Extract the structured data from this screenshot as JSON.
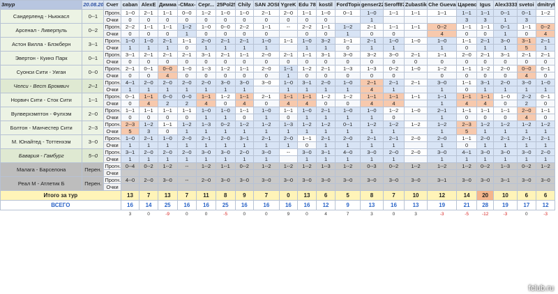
{
  "header": {
    "tour_label": "3тур",
    "date": "20.08.2011",
    "score_label": "Счет",
    "players": [
      "caban",
      "AlexE",
      "Димма",
      "-CMax-",
      "Серг...",
      "25Pol25",
      "Chily",
      "SAN JOSE",
      "YgreK",
      "Edu 78",
      "kostil",
      "FordTopich",
      "genser221",
      "Seroff87",
      "Zubastik",
      "Che Guevara",
      "Царевский",
      "Igus",
      "Alex3333",
      "svetoi",
      "dmitryK"
    ]
  },
  "matches": [
    {
      "name": "Сандерленд - Ньюкасл",
      "score": "0--1",
      "style": "normal",
      "pred": [
        "1--0",
        "2--1",
        "1--1",
        "0--0",
        "1--2",
        "1--0",
        "1--0",
        "2--1",
        "2--0",
        "1--1",
        "1--0",
        "0--1",
        "1--0",
        "1--1",
        "1--1",
        "1--1",
        "1--1",
        "1--1",
        "0--1",
        "0--1",
        "1--2"
      ],
      "pts": [
        "0",
        "0",
        "0",
        "0",
        "0",
        "0",
        "0",
        "0",
        "0",
        "0",
        "0",
        "",
        "1",
        "",
        "",
        "",
        "3",
        "3",
        "1",
        "3",
        ""
      ]
    },
    {
      "name": "Арсенал - Ливерпуль",
      "score": "0--2",
      "style": "normal",
      "pred": [
        "2--2",
        "1--1",
        "1--1",
        "1--2",
        "1--0",
        "0--0",
        "2--2",
        "1--1",
        "--",
        "2--2",
        "1--1",
        "1--2",
        "2--1",
        "1--1",
        "1--1",
        "0--2",
        "1--1",
        "1--1",
        "0--1",
        "1--1",
        "0--2"
      ],
      "pts": [
        "0",
        "0",
        "0",
        "1",
        "0",
        "0",
        "0",
        "0",
        "",
        "0",
        "0",
        "1",
        "0",
        "0",
        "",
        "4",
        "0",
        "0",
        "1",
        "0",
        "4"
      ]
    },
    {
      "name": "Астон Вилла - Блэкберн",
      "score": "3--1",
      "style": "normal",
      "pred": [
        "1--0",
        "1--0",
        "2--1",
        "1--1",
        "2--0",
        "2--1",
        "2--1",
        "1--0",
        "1--1",
        "1--0",
        "3--2",
        "1--1",
        "2--1",
        "1--0",
        "1--0",
        "1--0",
        "1--1",
        "2--1",
        "3--0",
        "3--1",
        "2--1"
      ],
      "pts": [
        "1",
        "1",
        "1",
        "0",
        "1",
        "1",
        "1",
        "1",
        "",
        "1",
        "1",
        "0",
        "1",
        "1",
        "",
        "1",
        "0",
        "1",
        "1",
        "5",
        "1"
      ]
    },
    {
      "name": "Эвертон - Куинз Парк",
      "score": "0--1",
      "style": "normal",
      "pred": [
        "3--1",
        "2--1",
        "2--1",
        "2--1",
        "3--1",
        "2--1",
        "1--1",
        "2--0",
        "2--1",
        "1--1",
        "3--1",
        "3--0",
        "3--2",
        "3--0",
        "2--1",
        "1--1",
        "2--0",
        "2--1",
        "3--1",
        "2--1",
        "2--1"
      ],
      "pts": [
        "0",
        "0",
        "0",
        "0",
        "0",
        "0",
        "0",
        "0",
        "0",
        "0",
        "0",
        "0",
        "0",
        "0",
        "0",
        "0",
        "0",
        "0",
        "0",
        "0",
        "0"
      ]
    },
    {
      "name": "Суонси Сити - Уиган",
      "score": "0--0",
      "style": "normal",
      "pred": [
        "2--1",
        "0--1",
        "0--0",
        "1--0",
        "1--3",
        "1--2",
        "1--1",
        "2--0",
        "1--1",
        "1--2",
        "2--1",
        "1--3",
        "1--3",
        "0--2",
        "1--0",
        "1--2",
        "1--1",
        "1--2",
        "2--0",
        "0--0",
        "0--1"
      ],
      "pts": [
        "0",
        "0",
        "4",
        "0",
        "0",
        "0",
        "0",
        "0",
        "1",
        "0",
        "0",
        "0",
        "0",
        "0",
        "",
        "0",
        "0",
        "0",
        "0",
        "4",
        "0"
      ]
    },
    {
      "name": "Челси - Вест Бромвич",
      "score": "2--1",
      "style": "shade-italic",
      "pred": [
        "4--1",
        "2--0",
        "2--0",
        "2--0",
        "2--0",
        "3--0",
        "3--0",
        "3--0",
        "1--0",
        "3--1",
        "2--0",
        "1--0",
        "2--1",
        "2--1",
        "2--1",
        "3--0",
        "1--1",
        "3--1",
        "2--0",
        "3--0",
        "1--0"
      ],
      "pts": [
        "1",
        "1",
        "1",
        "1",
        "1",
        "1",
        "1",
        "",
        "1",
        "1",
        "1",
        "1",
        "4",
        "1",
        "",
        "1",
        "0",
        "1",
        "1",
        "1",
        "1"
      ]
    },
    {
      "name": "Норвич Сити - Сток Сити",
      "score": "1--1",
      "style": "normal",
      "pred": [
        "0--1",
        "1--1",
        "0--0",
        "0--0",
        "1--1",
        "1--2",
        "1--1",
        "2--1",
        "1--1",
        "1--1",
        "1--2",
        "1--2",
        "1--1",
        "1--1",
        "1--1",
        "1--1",
        "1--1",
        "1--1",
        "1--0",
        "2--2",
        "0--1"
      ],
      "pts": [
        "0",
        "4",
        "2",
        "2",
        "4",
        "0",
        "4",
        "0",
        "4",
        "4",
        "0",
        "0",
        "4",
        "4",
        "",
        "1",
        "4",
        "4",
        "0",
        "2",
        "0"
      ]
    },
    {
      "name": "Вулверхэмптон - Фулхэм",
      "score": "2--0",
      "style": "normal",
      "pred": [
        "1--1",
        "1--1",
        "1--1",
        "1--1",
        "1--0",
        "1--0",
        "1--1",
        "1--0",
        "1--1",
        "1--0",
        "2--1",
        "1--0",
        "1--0",
        "1--2",
        "1--0",
        "2--1",
        "1--1",
        "1--1",
        "1--1",
        "2--0",
        "1--1"
      ],
      "pts": [
        "0",
        "0",
        "0",
        "0",
        "1",
        "1",
        "0",
        "1",
        "0",
        "1",
        "1",
        "1",
        "1",
        "0",
        "",
        "1",
        "0",
        "0",
        "0",
        "4",
        "0"
      ]
    },
    {
      "name": "Болтон - Манчестер Сити",
      "score": "2--3",
      "style": "normal",
      "pred": [
        "2--3",
        "1--2",
        "1--1",
        "1--2",
        "1--3",
        "0--2",
        "1--2",
        "1--2",
        "1--3",
        "1--2",
        "1--2",
        "0--1",
        "1--2",
        "1--2",
        "1--2",
        "1--2",
        "2--3",
        "1--2",
        "1--2",
        "1--2",
        "1--2"
      ],
      "pts": [
        "5",
        "3",
        "0",
        "1",
        "1",
        "1",
        "1",
        "1",
        "1",
        "1",
        "1",
        "1",
        "1",
        "1",
        "",
        "1",
        "5",
        "1",
        "1",
        "1",
        "1"
      ]
    },
    {
      "name": "М. Юнайтед - Тоттенхэм",
      "score": "3--0",
      "style": "normal",
      "pred": [
        "1--0",
        "2--1",
        "1--0",
        "2--0",
        "2--1",
        "2--0",
        "3--1",
        "2--1",
        "2--0",
        "1--1",
        "2--1",
        "2--0",
        "2--1",
        "2--1",
        "2--0",
        "2--0",
        "1--1",
        "2--0",
        "2--1",
        "2--1",
        "2--1"
      ],
      "pts": [
        "1",
        "1",
        "1",
        "1",
        "1",
        "1",
        "1",
        "1",
        "1",
        "0",
        "1",
        "1",
        "1",
        "1",
        "",
        "1",
        "0",
        "1",
        "1",
        "1",
        "1"
      ]
    },
    {
      "name": "Бавария - Гамбург",
      "score": "5--0",
      "style": "shade-italic",
      "pred": [
        "3--1",
        "2--0",
        "2--0",
        "2--0",
        "3--0",
        "3--0",
        "2--0",
        "3--0",
        "--",
        "3--0",
        "3--1",
        "4--0",
        "3--0",
        "2--0",
        "2--0",
        "3--0",
        "4--1",
        "3--0",
        "3--0",
        "3--0",
        "2--0"
      ],
      "pts": [
        "1",
        "1",
        "1",
        "1",
        "1",
        "1",
        "1",
        "1",
        "",
        "1",
        "1",
        "1",
        "1",
        "1",
        "",
        "1",
        "1",
        "1",
        "1",
        "1",
        "1"
      ]
    },
    {
      "name": "Малага - Барселона",
      "score": "Перен.",
      "style": "grey",
      "pred": [
        "0--4",
        "0--2",
        "1--2",
        "--",
        "1--2",
        "1--1",
        "0--2",
        "1--2",
        "1--2",
        "1--2",
        "1--3",
        "1--2",
        "0--3",
        "0--2",
        "1--2",
        "1--2",
        "1--2",
        "0--2",
        "1--3",
        "0--2",
        "1--2"
      ],
      "pts": [
        "",
        "",
        "",
        "",
        "",
        "",
        "",
        "",
        "",
        "",
        "",
        "",
        "",
        "",
        "",
        "",
        "",
        "",
        "",
        "",
        ""
      ]
    },
    {
      "name": "Реал М - Атлетик Б",
      "score": "Перен.",
      "style": "grey",
      "pred": [
        "4--0",
        "2--0",
        "3--0",
        "--",
        "2--0",
        "3--0",
        "3--0",
        "3--0",
        "3--0",
        "3--0",
        "3--0",
        "3--0",
        "3--0",
        "3--0",
        "3--0",
        "3--1",
        "3--0",
        "3--0",
        "3--1",
        "3--0",
        "3--0"
      ],
      "pts": [
        "",
        "",
        "",
        "",
        "",
        "",
        "",
        "",
        "",
        "",
        "",
        "",
        "",
        "",
        "",
        "",
        "",
        "",
        "",
        "",
        ""
      ]
    }
  ],
  "labels": {
    "pred": "Прогн.",
    "pts": "Очки"
  },
  "totals": {
    "label": "Итого за тур",
    "values": [
      "13",
      "7",
      "13",
      "7",
      "11",
      "8",
      "9",
      "7",
      "0",
      "13",
      "6",
      "5",
      "8",
      "7",
      "10",
      "12",
      "14",
      "20",
      "10",
      "6",
      "6"
    ]
  },
  "overall": {
    "label": "ВСЕГО",
    "values": [
      "16",
      "14",
      "25",
      "16",
      "16",
      "25",
      "16",
      "16",
      "16",
      "16",
      "12",
      "9",
      "13",
      "16",
      "13",
      "19",
      "21",
      "28",
      "19",
      "17",
      "12"
    ]
  },
  "diff": {
    "values": [
      "3",
      "0",
      "-9",
      "0",
      "0",
      "-5",
      "0",
      "0",
      "9",
      "0",
      "4",
      "7",
      "3",
      "0",
      "3",
      "-3",
      "-5",
      "-12",
      "-3",
      "0",
      "-3"
    ]
  },
  "watermark": "fclub.ru",
  "colors": {
    "header": "#dbe5f1",
    "exact": "#f7c9ad",
    "hit": "#d8e4f5",
    "total": "#fff4b8",
    "overall_text": "#2b64c7",
    "negative": "#d6211f"
  }
}
